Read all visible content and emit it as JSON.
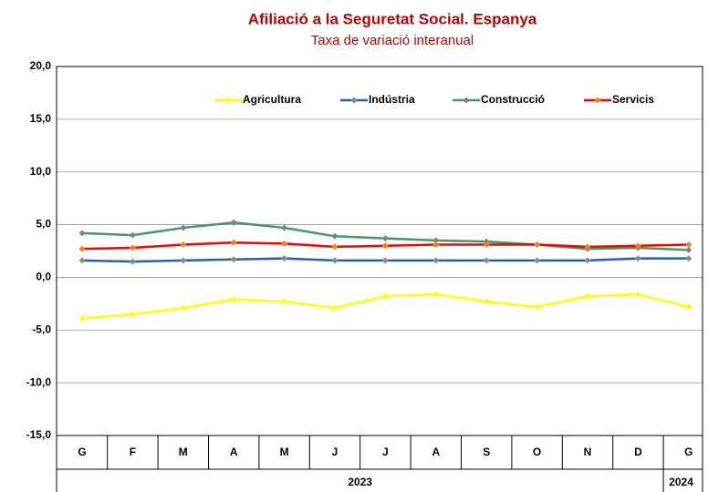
{
  "chart_data": {
    "type": "line",
    "title": "Afiliació a la Seguretat Social. Espanya",
    "subtitle": "Taxa de variació interanual",
    "categories": [
      "G",
      "F",
      "M",
      "A",
      "M",
      "J",
      "J",
      "A",
      "S",
      "O",
      "N",
      "D",
      "G"
    ],
    "groups": [
      "2023",
      "2024"
    ],
    "series": [
      {
        "name": "Agricultura",
        "color": "#ffff00",
        "values": [
          -3.9,
          -3.5,
          -2.9,
          -2.1,
          -2.3,
          -2.9,
          -1.8,
          -1.6,
          -2.3,
          -2.8,
          -1.8,
          -1.6,
          -2.8
        ]
      },
      {
        "name": "Indústria",
        "color": "#1f5fbf",
        "values": [
          1.6,
          1.5,
          1.6,
          1.7,
          1.8,
          1.6,
          1.6,
          1.6,
          1.6,
          1.6,
          1.6,
          1.8,
          1.8
        ]
      },
      {
        "name": "Construcció",
        "color": "#3f9a6a",
        "values": [
          4.2,
          4.0,
          4.7,
          5.2,
          4.7,
          3.9,
          3.7,
          3.5,
          3.4,
          3.1,
          2.7,
          2.8,
          2.6
        ]
      },
      {
        "name": "Servicis",
        "color": "#ff0000",
        "values": [
          2.7,
          2.8,
          3.1,
          3.3,
          3.2,
          2.9,
          3.0,
          3.1,
          3.1,
          3.1,
          2.9,
          3.0,
          3.1
        ]
      }
    ],
    "ylim": [
      -15,
      20
    ],
    "yticks": [
      {
        "value": -15,
        "label": "-15,0"
      },
      {
        "value": -10,
        "label": "-10,0"
      },
      {
        "value": -5,
        "label": "-5,0"
      },
      {
        "value": 0,
        "label": "0,0"
      },
      {
        "value": 5,
        "label": "5,0"
      },
      {
        "value": 10,
        "label": "10,0"
      },
      {
        "value": 15,
        "label": "15,0"
      },
      {
        "value": 20,
        "label": "20,0"
      }
    ],
    "grid": true
  }
}
